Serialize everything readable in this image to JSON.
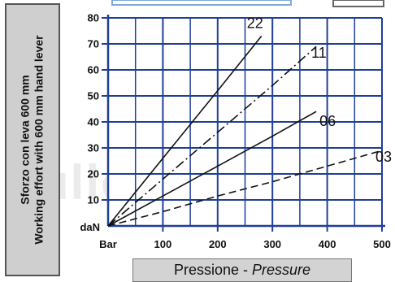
{
  "chart_data": {
    "type": "line",
    "xlabel_main": "Pressione",
    "xlabel_sep": " - ",
    "xlabel_italic": "Pressure",
    "ylabel_line1": "Sforzo con leva 600 mm",
    "ylabel_line2": "Working effort with 600 mm hand lever",
    "xunit": "Bar",
    "yunit": "daN",
    "xlim": [
      0,
      500
    ],
    "ylim": [
      0,
      80
    ],
    "x_ticks": [
      100,
      200,
      300,
      400,
      500
    ],
    "y_ticks": [
      10,
      20,
      30,
      40,
      50,
      60,
      70,
      80
    ],
    "grid": true,
    "series": [
      {
        "name": "22",
        "style": "solid",
        "x": [
          0,
          100,
          200,
          280
        ],
        "y": [
          0,
          26,
          52,
          73
        ]
      },
      {
        "name": "11",
        "style": "dashdot",
        "x": [
          0,
          100,
          200,
          300,
          380
        ],
        "y": [
          0,
          18,
          36,
          54,
          69
        ]
      },
      {
        "name": "06",
        "style": "solid",
        "x": [
          0,
          100,
          200,
          300,
          380
        ],
        "y": [
          0,
          11.5,
          23,
          34.5,
          44
        ]
      },
      {
        "name": "03",
        "style": "dashed",
        "x": [
          0,
          100,
          200,
          300,
          400,
          500
        ],
        "y": [
          0,
          5.5,
          11.5,
          17,
          23,
          29
        ]
      }
    ]
  },
  "watermark": "ullc.it",
  "colors": {
    "grid": "#1f3f97",
    "line": "#111111",
    "label_box": "#cfcfcf"
  }
}
